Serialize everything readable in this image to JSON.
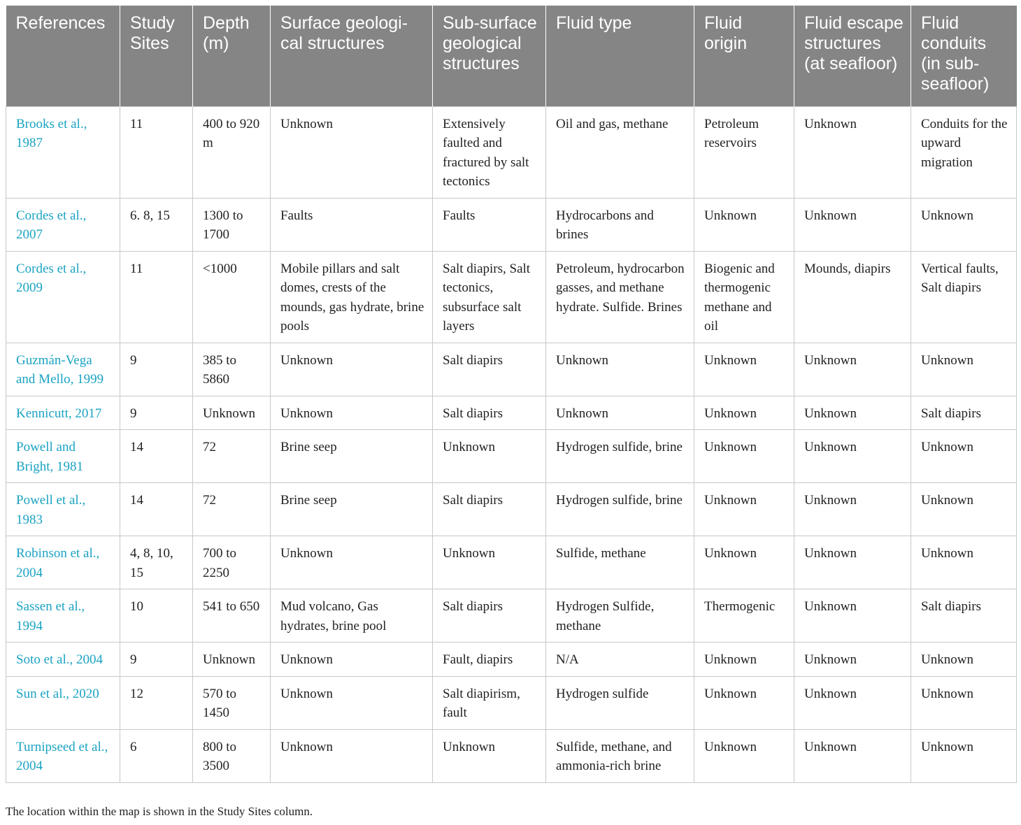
{
  "headers": [
    "References",
    "Study Sites",
    "Depth (m)",
    "Surface geologi-cal structures",
    "Sub-surface geological structures",
    "Fluid type",
    "Fluid origin",
    "Fluid escape structures (at seafloor)",
    "Fluid conduits (in sub-seafloor)"
  ],
  "rows": [
    [
      "Brooks et al., 1987",
      "11",
      "400 to 920 m",
      "Unknown",
      "Extensively faulted and fractured by salt tectonics",
      "Oil and gas, methane",
      "Petroleum reservoirs",
      "Unknown",
      "Conduits for the upward migration"
    ],
    [
      "Cordes et al., 2007",
      "6. 8, 15",
      "1300 to 1700",
      "Faults",
      "Faults",
      "Hydrocarbons and brines",
      "Unknown",
      "Unknown",
      "Unknown"
    ],
    [
      "Cordes et al., 2009",
      "11",
      "<1000",
      "Mobile pillars and salt domes, crests of the mounds, gas hydrate, brine pools",
      "Salt diapirs, Salt tectonics, subsurface salt layers",
      "Petroleum, hydrocarbon gasses, and methane hydrate. Sulfide. Brines",
      "Biogenic and thermogenic methane and oil",
      "Mounds, diapirs",
      "Vertical faults, Salt diapirs"
    ],
    [
      "Guzmán-Vega and Mello, 1999",
      "9",
      "385 to 5860",
      "Unknown",
      "Salt diapirs",
      "Unknown",
      "Unknown",
      "Unknown",
      "Unknown"
    ],
    [
      "Kennicutt, 2017",
      "9",
      "Unknown",
      "Unknown",
      "Salt diapirs",
      "Unknown",
      "Unknown",
      "Unknown",
      "Salt diapirs"
    ],
    [
      "Powell and Bright, 1981",
      "14",
      "72",
      "Brine seep",
      "Unknown",
      "Hydrogen sulfide, brine",
      "Unknown",
      "Unknown",
      "Unknown"
    ],
    [
      "Powell et al., 1983",
      "14",
      "72",
      "Brine seep",
      "Salt diapirs",
      "Hydrogen sulfide, brine",
      "Unknown",
      "Unknown",
      "Unknown"
    ],
    [
      "Robinson et al., 2004",
      "4, 8, 10, 15",
      "700 to 2250",
      "Unknown",
      "Unknown",
      "Sulfide, methane",
      "Unknown",
      "Unknown",
      "Unknown"
    ],
    [
      "Sassen et al., 1994",
      "10",
      "541 to 650",
      "Mud volcano, Gas hydrates, brine pool",
      "Salt diapirs",
      "Hydrogen Sulfide, methane",
      "Thermogenic",
      "Unknown",
      "Salt diapirs"
    ],
    [
      "Soto et al., 2004",
      "9",
      "Unknown",
      "Unknown",
      "Fault, diapirs",
      "N/A",
      "Unknown",
      "Unknown",
      "Unknown"
    ],
    [
      "Sun et al., 2020",
      "12",
      "570 to 1450",
      "Unknown",
      "Salt diapirism, fault",
      "Hydrogen sulfide",
      "Unknown",
      "Unknown",
      "Unknown"
    ],
    [
      "Turnipseed et al., 2004",
      "6",
      "800 to 3500",
      "Unknown",
      "Unknown",
      "Sulfide, methane, and ammonia-rich brine",
      "Unknown",
      "Unknown",
      "Unknown"
    ]
  ],
  "footnote": "The location within the map is shown in the Study Sites column."
}
